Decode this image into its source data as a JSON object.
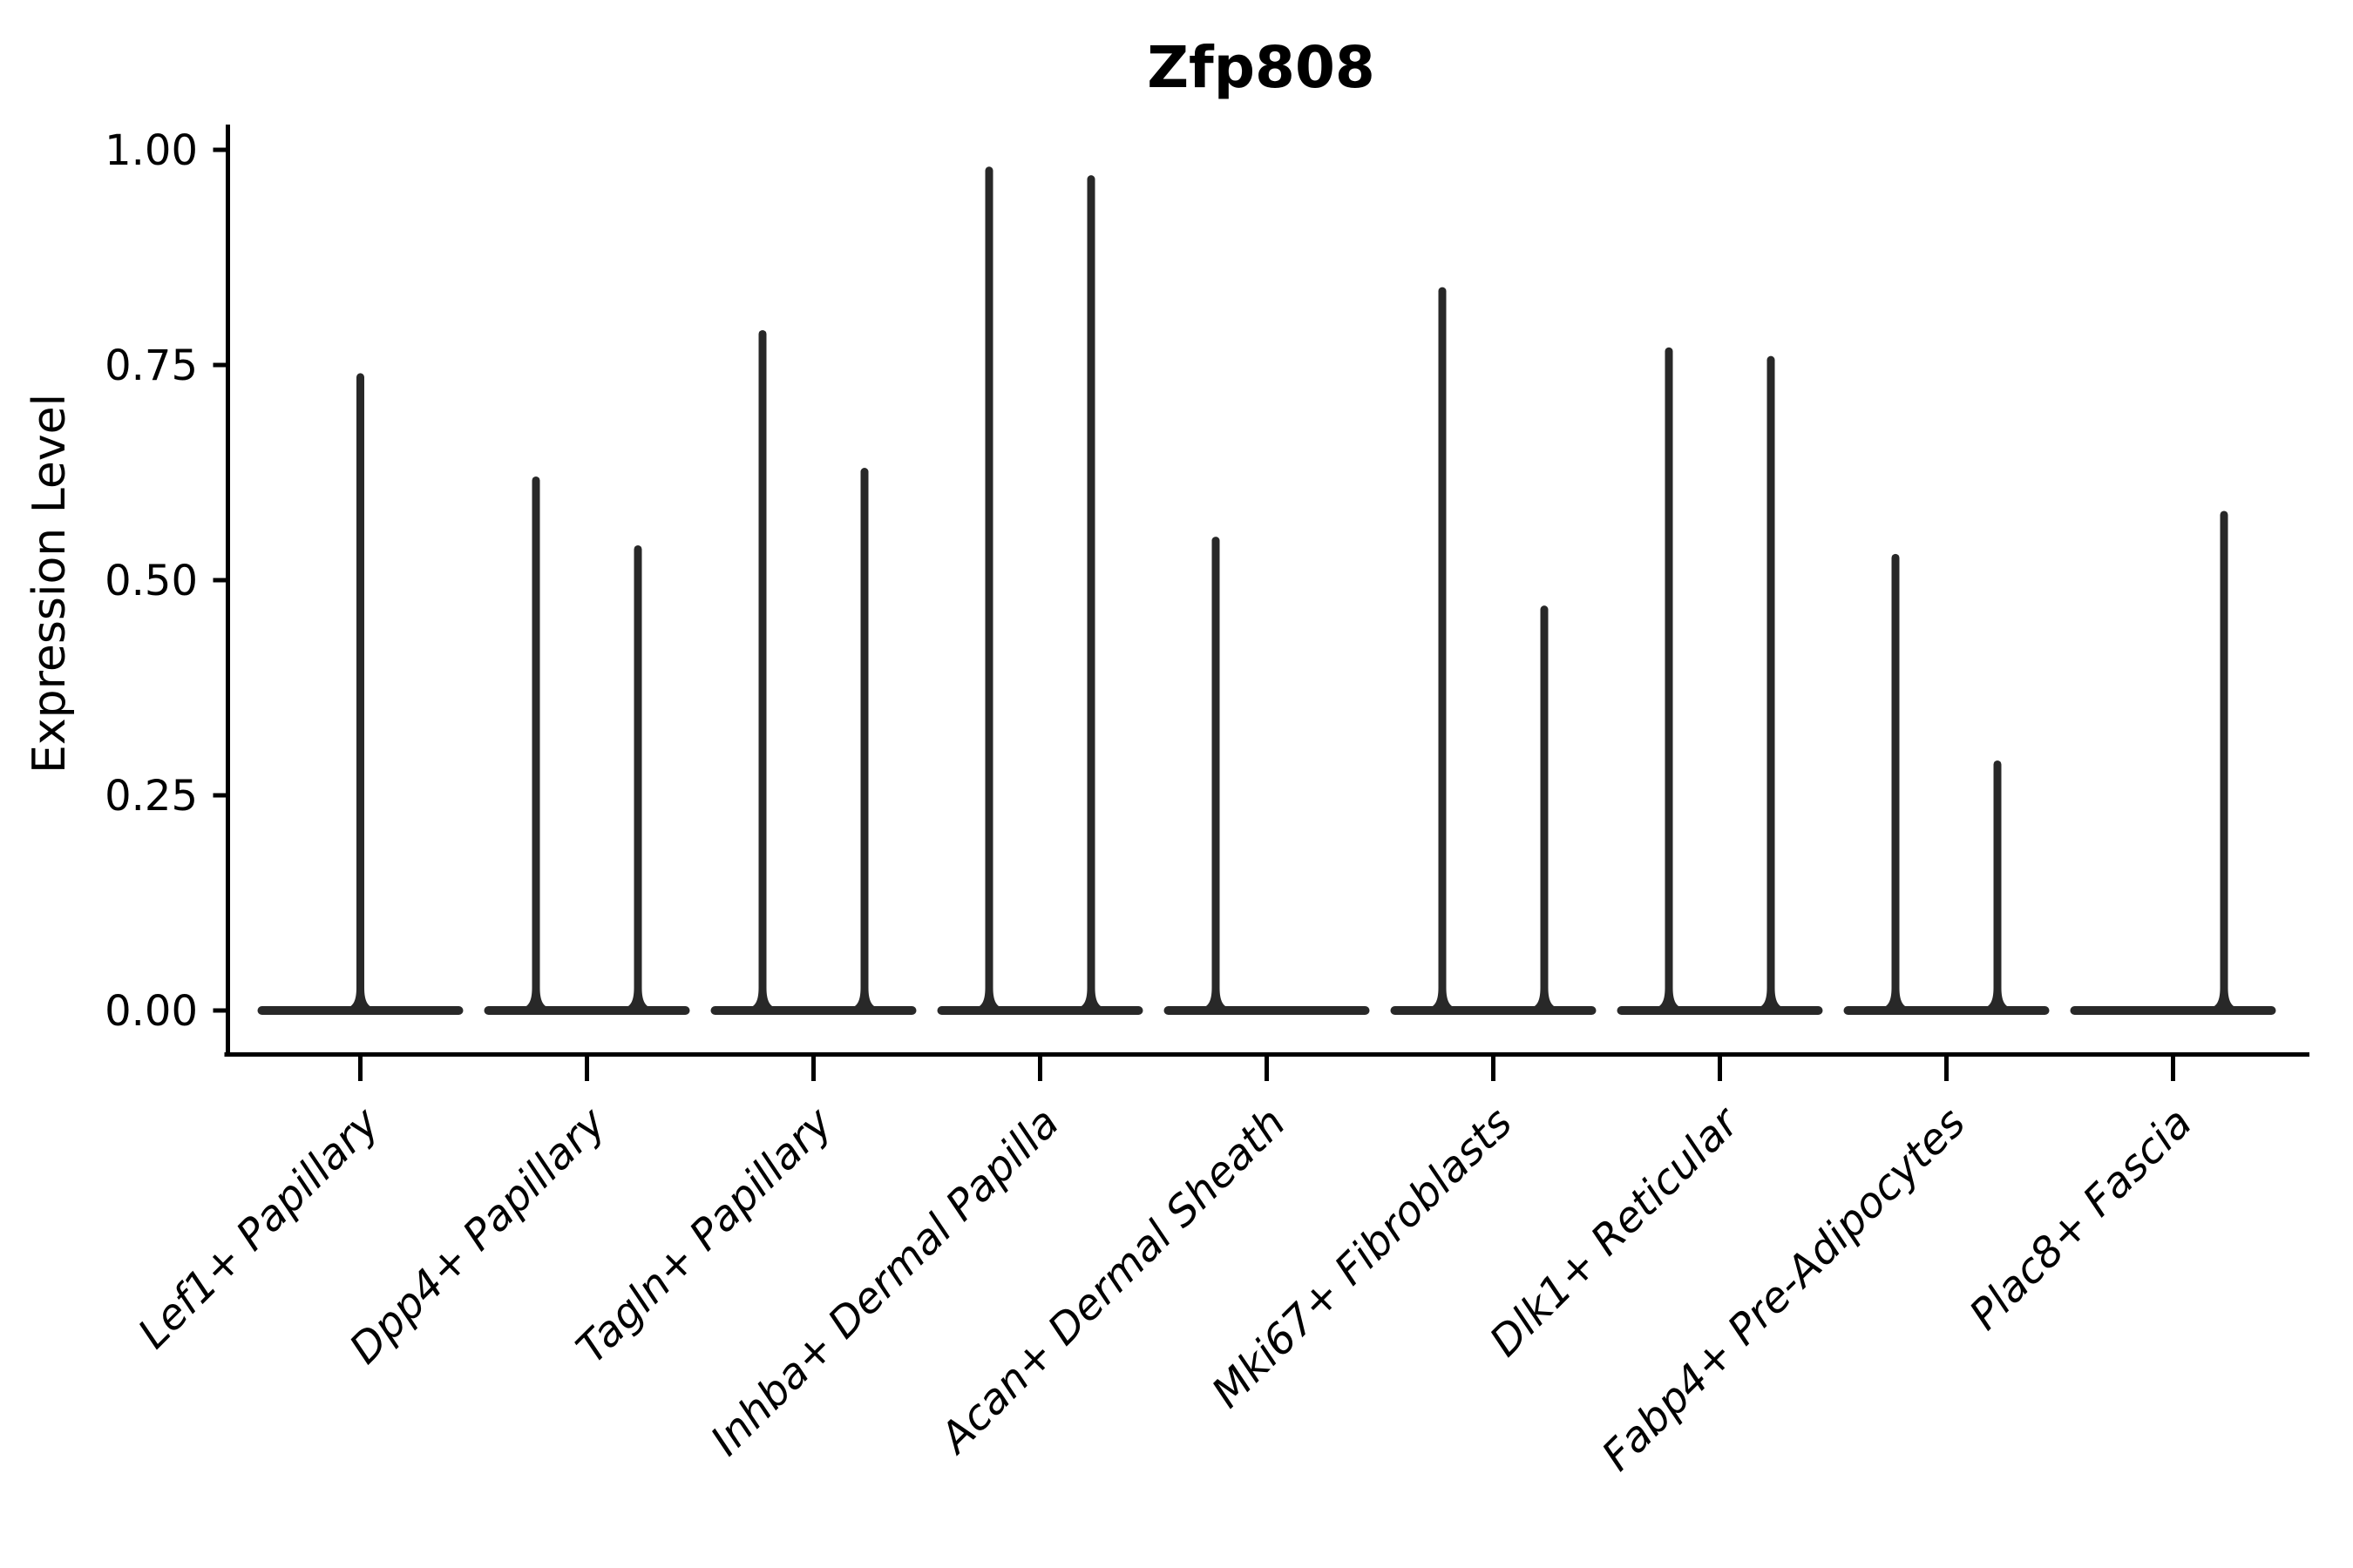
{
  "chart_data": {
    "type": "violin",
    "title": "Zfp808",
    "ylabel": "Expression Level",
    "xlabel": "",
    "ylim": [
      0,
      1.03
    ],
    "grid": false,
    "legend": "none",
    "ytick_values": [
      0,
      0.25,
      0.5,
      0.75,
      1.0
    ],
    "ytick_labels": [
      "0.00",
      "0.25",
      "0.50",
      "0.75",
      "1.00"
    ],
    "categories": [
      "Lef1+ Papillary",
      "Dpp4+ Papillary",
      "Tagln+ Papillary",
      "Inhba+ Dermal Papilla",
      "Acan+ Dermal Sheath",
      "Mki67+ Fibroblasts",
      "Dlk1+ Reticular",
      "Fabp4+ Pre-Adipocytes",
      "Plac8+ Fascia"
    ],
    "description": "Violin plot of Zfp808 expression; most cells at 0 (flat violin base) with thin spikes up to the max expression. Slot -1 = left dodged violin, 1 = right dodged violin, 0 = single centered violin.",
    "violins": [
      {
        "category": "Lef1+ Papillary",
        "spikes": [
          {
            "slot": 0,
            "max": 0.74
          }
        ]
      },
      {
        "category": "Dpp4+ Papillary",
        "spikes": [
          {
            "slot": -1,
            "max": 0.62
          },
          {
            "slot": 1,
            "max": 0.54
          }
        ]
      },
      {
        "category": "Tagln+ Papillary",
        "spikes": [
          {
            "slot": -1,
            "max": 0.79
          },
          {
            "slot": 1,
            "max": 0.63
          }
        ]
      },
      {
        "category": "Inhba+ Dermal Papilla",
        "spikes": [
          {
            "slot": -1,
            "max": 0.98
          },
          {
            "slot": 1,
            "max": 0.97
          }
        ]
      },
      {
        "category": "Acan+ Dermal Sheath",
        "spikes": [
          {
            "slot": -1,
            "max": 0.55
          }
        ]
      },
      {
        "category": "Mki67+ Fibroblasts",
        "spikes": [
          {
            "slot": -1,
            "max": 0.84
          },
          {
            "slot": 1,
            "max": 0.47
          }
        ]
      },
      {
        "category": "Dlk1+ Reticular",
        "spikes": [
          {
            "slot": -1,
            "max": 0.77
          },
          {
            "slot": 1,
            "max": 0.76
          }
        ]
      },
      {
        "category": "Fabp4+ Pre-Adipocytes",
        "spikes": [
          {
            "slot": -1,
            "max": 0.53
          },
          {
            "slot": 1,
            "max": 0.29
          }
        ]
      },
      {
        "category": "Plac8+ Fascia",
        "spikes": [
          {
            "slot": 1,
            "max": 0.58
          }
        ]
      }
    ],
    "colors": {
      "violin": "#282828",
      "axis": "#000000",
      "text": "#000000",
      "background": "#ffffff"
    }
  }
}
